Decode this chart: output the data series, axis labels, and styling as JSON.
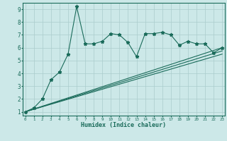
{
  "xlabel": "Humidex (Indice chaleur)",
  "background_color": "#cce8e8",
  "grid_color": "#aacccc",
  "line_color": "#1a6b5a",
  "x_ticks": [
    0,
    1,
    2,
    3,
    4,
    5,
    6,
    7,
    8,
    9,
    10,
    11,
    12,
    13,
    14,
    15,
    16,
    17,
    18,
    19,
    20,
    21,
    22,
    23
  ],
  "y_ticks": [
    1,
    2,
    3,
    4,
    5,
    6,
    7,
    8,
    9
  ],
  "ylim": [
    0.7,
    9.5
  ],
  "xlim": [
    -0.3,
    23.3
  ],
  "series1_x": [
    0,
    1,
    2,
    3,
    4,
    5,
    6,
    7,
    8,
    9,
    10,
    11,
    12,
    13,
    14,
    15,
    16,
    17,
    18,
    19,
    20,
    21,
    22,
    23
  ],
  "series1_y": [
    1.0,
    1.3,
    2.0,
    3.5,
    4.1,
    5.5,
    9.2,
    6.3,
    6.3,
    6.5,
    7.1,
    7.0,
    6.4,
    5.3,
    7.1,
    7.1,
    7.2,
    7.0,
    6.2,
    6.5,
    6.3,
    6.3,
    5.6,
    6.0
  ],
  "series2_x": [
    0,
    23
  ],
  "series2_y": [
    1.0,
    6.0
  ],
  "series3_x": [
    0,
    23
  ],
  "series3_y": [
    1.0,
    5.5
  ],
  "series4_x": [
    0,
    23
  ],
  "series4_y": [
    1.0,
    5.75
  ]
}
